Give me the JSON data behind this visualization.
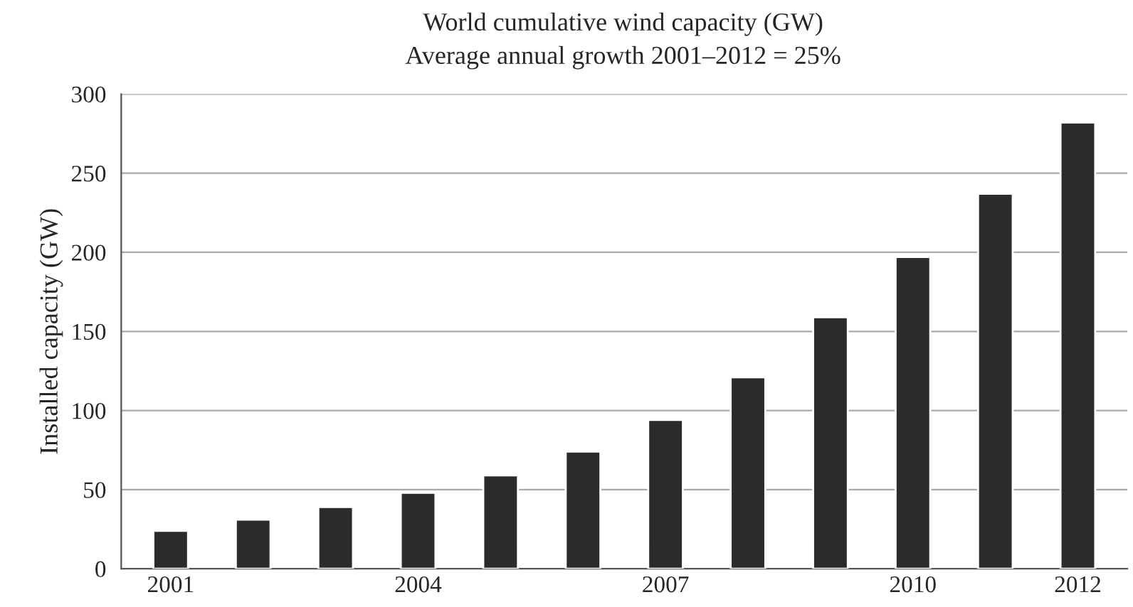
{
  "chart_data": {
    "type": "bar",
    "title": "World cumulative wind capacity (GW)",
    "subtitle": "Average annual growth 2001–2012 = 25%",
    "ylabel": "Installed capacity (GW)",
    "categories": [
      "2001",
      null,
      null,
      "2004",
      null,
      null,
      "2007",
      null,
      null,
      "2010",
      null,
      "2012"
    ],
    "values": [
      24,
      31,
      39,
      48,
      59,
      74,
      94,
      121,
      159,
      197,
      237,
      282
    ],
    "color": "#2b2b2b",
    "ylim": [
      0,
      300
    ],
    "yticks": [
      0,
      50,
      100,
      150,
      200,
      250,
      300
    ],
    "grid": "y"
  }
}
